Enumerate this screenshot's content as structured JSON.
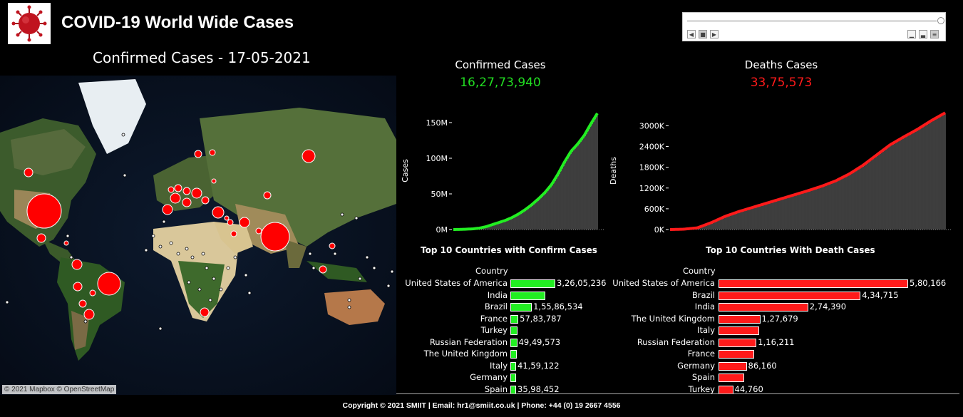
{
  "header": {
    "title": "COVID-19  World Wide Cases",
    "logo_icon": "virus-icon"
  },
  "map": {
    "subtitle": "Confirmed Cases - 17-05-2021",
    "attribution": "© 2021 Mapbox © OpenStreetMap",
    "marker_color": "#ff0000"
  },
  "playback": {
    "controls": [
      "back-icon",
      "stop-icon",
      "forward-icon"
    ],
    "speed_icons": [
      "speed-slow-icon",
      "speed-medium-icon",
      "speed-fast-icon"
    ]
  },
  "kpis": {
    "confirmed": {
      "label": "Confirmed Cases",
      "value": "16,27,73,940",
      "color": "#22dd22"
    },
    "deaths": {
      "label": "Deaths Cases",
      "value": "33,75,573",
      "color": "#ff1a1a"
    }
  },
  "chart_data": [
    {
      "type": "area",
      "ylabel": "Cases",
      "xlabel": "",
      "ylim": [
        0,
        165000000
      ],
      "yticks": [
        "0M",
        "50M",
        "100M",
        "150M"
      ],
      "ytick_values": [
        0,
        50000000,
        100000000,
        150000000
      ],
      "color": "#22ee22",
      "series": [
        {
          "values": [
            0,
            0.2,
            0.5,
            1,
            2,
            4,
            7,
            10,
            13,
            17,
            22,
            28,
            35,
            43,
            52,
            63,
            78,
            95,
            110,
            120,
            132,
            148,
            163
          ]
        }
      ],
      "unit": "M"
    },
    {
      "type": "area",
      "ylabel": "Deaths",
      "xlabel": "",
      "ylim": [
        0,
        3400000
      ],
      "yticks": [
        "0K",
        "600K",
        "1200K",
        "1800K",
        "2400K",
        "3000K"
      ],
      "ytick_values": [
        0,
        600000,
        1200000,
        1800000,
        2400000,
        3000000
      ],
      "color": "#ff1a1a",
      "series": [
        {
          "values": [
            0,
            10,
            50,
            200,
            380,
            520,
            640,
            760,
            880,
            1000,
            1120,
            1250,
            1400,
            1600,
            1850,
            2150,
            2450,
            2680,
            2900,
            3150,
            3375
          ]
        }
      ],
      "unit": "K"
    },
    {
      "type": "bar",
      "title": "Top 10 Countries with Confirm Cases",
      "column_header": "Country",
      "color": "#22ee22",
      "categories": [
        "United States of America",
        "India",
        "Brazil",
        "France",
        "Turkey",
        "Russian Federation",
        "The United Kingdom",
        "Italy",
        "Germany",
        "Spain"
      ],
      "values": [
        32605236,
        25227000,
        15586534,
        5783787,
        5106000,
        4949573,
        4450000,
        4159122,
        3590000,
        3598452
      ],
      "value_labels": [
        "3,26,05,236",
        "",
        "1,55,86,534",
        "57,83,787",
        "",
        "49,49,573",
        "",
        "41,59,122",
        "",
        "35,98,452"
      ]
    },
    {
      "type": "bar",
      "title": "Top 10 Countries With Death Cases",
      "column_header": "Country",
      "color": "#ff1a1a",
      "categories": [
        "United States of America",
        "Brazil",
        "India",
        "The United Kingdom",
        "Italy",
        "Russian Federation",
        "France",
        "Germany",
        "Spain",
        "Turkey"
      ],
      "values": [
        580166,
        434715,
        274390,
        127679,
        124000,
        116211,
        108000,
        86160,
        79000,
        44760
      ],
      "value_labels": [
        "5,80,166",
        "4,34,715",
        "2,74,390",
        "1,27,679",
        "",
        "1,16,211",
        "",
        "86,160",
        "",
        "44,760"
      ]
    }
  ],
  "footer": {
    "text": "Copyright © 2021  SMIIT | Email: hr1@smiit.co.uk | Phone: +44 (0) 19 2667 4556"
  }
}
